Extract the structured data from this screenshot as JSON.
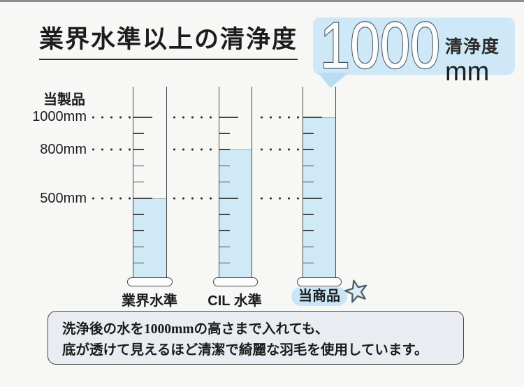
{
  "header": {
    "title": "業界水準以上の清浄度"
  },
  "badge": {
    "value": "1000",
    "label": "清浄度",
    "unit": "mm"
  },
  "axis": {
    "top_label": "当製品",
    "tick_labels": [
      "1000mm",
      "800mm",
      "500mm"
    ]
  },
  "chart_data": {
    "type": "bar",
    "title": "業界水準以上の清浄度",
    "categories": [
      "業界水準",
      "CIL 水準",
      "当商品"
    ],
    "values": [
      500,
      800,
      1000
    ],
    "unit": "mm",
    "ylabel": "清浄度 (mm)",
    "ylim": [
      0,
      1000
    ],
    "yticks_labeled": [
      1000,
      800,
      500
    ],
    "guide_levels": [
      1000,
      800,
      500
    ],
    "highlight_category": "当商品",
    "highlight_value_badge": "1000 清浄度 mm",
    "legend_position": "none",
    "grid": "dotted-horizontal-guides"
  },
  "footnote": {
    "line1": "洗浄後の水を1000mmの高さまで入れても、",
    "line2": "底が透けて見えるほど清潔で綺麗な羽毛を使用しています。"
  },
  "colors": {
    "water": "#cfe9f7",
    "bubble": "#cfe8f8",
    "bubble_tail": "#b9ddf3",
    "highlight_pill": "#c9e5f7",
    "footnote_bg": "#e9edf2",
    "ink": "#474747",
    "background": "#f7f7f6",
    "top_bar": "#8c8c8c"
  }
}
